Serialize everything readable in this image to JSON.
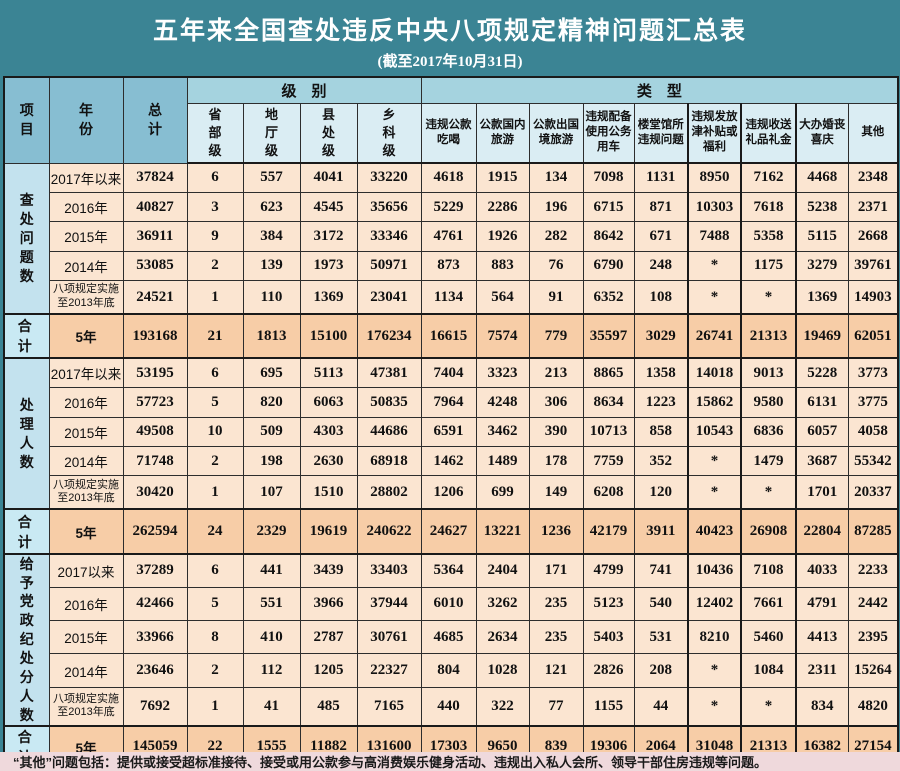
{
  "title": "五年来全国查处违反中央八项规定精神问题汇总表",
  "subtitle": "(截至2017年10月31日)",
  "colors": {
    "background_teal": "#3B8494",
    "header_blue": "#87BED2",
    "group_header_blue": "#A5D3DF",
    "subheader_blue": "#DAEDF3",
    "section_label_blue": "#C3E2EE",
    "total_label_blue": "#C9E9F3",
    "data_peach": "#FBE5D1",
    "total_peach": "#F7CDA7",
    "footnote_pink": "#EFD9DC"
  },
  "chart_data": {
    "type": "table",
    "title": "五年来全国查处违反中央八项规定精神问题汇总表",
    "subtitle": "(截至2017年10月31日)",
    "corner_headers": {
      "item": "项\n目",
      "year": "年\n份",
      "total": "总\n计"
    },
    "column_groups": [
      {
        "label": "级　别",
        "span": 4
      },
      {
        "label": "类　型",
        "span": 9
      }
    ],
    "columns": [
      "总计",
      "省部级",
      "地厅级",
      "县处级",
      "乡科级",
      "违规公款吃喝",
      "公款国内旅游",
      "公款出国境旅游",
      "违规配备使用公务用车",
      "楼堂馆所违规问题",
      "违规发放津补贴或福利",
      "违规收送礼品礼金",
      "大办婚丧喜庆",
      "其他"
    ],
    "level_columns": [
      "省\n部\n级",
      "地\n厅\n级",
      "县\n处\n级",
      "乡\n科\n级"
    ],
    "type_columns": [
      "违规公款\n吃喝",
      "公款国内\n旅游",
      "公款出国\n境旅游",
      "违规配备\n使用公务\n用车",
      "楼堂馆所\n违规问题",
      "违规发放\n津补贴或\n福利",
      "违规收送\n礼品礼金",
      "大办婚丧\n喜庆",
      "其他"
    ],
    "sections": [
      {
        "name": "查处问题数",
        "label": "查\n处\n问\n题\n数",
        "rows": [
          {
            "year": "2017年以来",
            "values": [
              "37824",
              "6",
              "557",
              "4041",
              "33220",
              "4618",
              "1915",
              "134",
              "7098",
              "1131",
              "8950",
              "7162",
              "4468",
              "2348"
            ]
          },
          {
            "year": "2016年",
            "values": [
              "40827",
              "3",
              "623",
              "4545",
              "35656",
              "5229",
              "2286",
              "196",
              "6715",
              "871",
              "10303",
              "7618",
              "5238",
              "2371"
            ]
          },
          {
            "year": "2015年",
            "values": [
              "36911",
              "9",
              "384",
              "3172",
              "33346",
              "4761",
              "1926",
              "282",
              "8642",
              "671",
              "7488",
              "5358",
              "5115",
              "2668"
            ]
          },
          {
            "year": "2014年",
            "values": [
              "53085",
              "2",
              "139",
              "1973",
              "50971",
              "873",
              "883",
              "76",
              "6790",
              "248",
              "*",
              "1175",
              "3279",
              "39761"
            ]
          },
          {
            "year": "八项规定实施\n至2013年底",
            "values": [
              "24521",
              "1",
              "110",
              "1369",
              "23041",
              "1134",
              "564",
              "91",
              "6352",
              "108",
              "*",
              "*",
              "1369",
              "14903"
            ]
          }
        ],
        "total_row": {
          "label": "合 计",
          "year": "5年",
          "values": [
            "193168",
            "21",
            "1813",
            "15100",
            "176234",
            "16615",
            "7574",
            "779",
            "35597",
            "3029",
            "26741",
            "21313",
            "19469",
            "62051"
          ]
        }
      },
      {
        "name": "处理人数",
        "label": "处\n理\n人\n数",
        "rows": [
          {
            "year": "2017年以来",
            "values": [
              "53195",
              "6",
              "695",
              "5113",
              "47381",
              "7404",
              "3323",
              "213",
              "8865",
              "1358",
              "14018",
              "9013",
              "5228",
              "3773"
            ]
          },
          {
            "year": "2016年",
            "values": [
              "57723",
              "5",
              "820",
              "6063",
              "50835",
              "7964",
              "4248",
              "306",
              "8634",
              "1223",
              "15862",
              "9580",
              "6131",
              "3775"
            ]
          },
          {
            "year": "2015年",
            "values": [
              "49508",
              "10",
              "509",
              "4303",
              "44686",
              "6591",
              "3462",
              "390",
              "10713",
              "858",
              "10543",
              "6836",
              "6057",
              "4058"
            ]
          },
          {
            "year": "2014年",
            "values": [
              "71748",
              "2",
              "198",
              "2630",
              "68918",
              "1462",
              "1489",
              "178",
              "7759",
              "352",
              "*",
              "1479",
              "3687",
              "55342"
            ]
          },
          {
            "year": "八项规定实施\n至2013年底",
            "values": [
              "30420",
              "1",
              "107",
              "1510",
              "28802",
              "1206",
              "699",
              "149",
              "6208",
              "120",
              "*",
              "*",
              "1701",
              "20337"
            ]
          }
        ],
        "total_row": {
          "label": "合 计",
          "year": "5年",
          "values": [
            "262594",
            "24",
            "2329",
            "19619",
            "240622",
            "24627",
            "13221",
            "1236",
            "42179",
            "3911",
            "40423",
            "26908",
            "22804",
            "87285"
          ]
        }
      },
      {
        "name": "给予党政纪处分人数",
        "label": "给\n予\n党\n政\n纪\n处\n分\n人\n数",
        "rows": [
          {
            "year": "2017以来",
            "values": [
              "37289",
              "6",
              "441",
              "3439",
              "33403",
              "5364",
              "2404",
              "171",
              "4799",
              "741",
              "10436",
              "7108",
              "4033",
              "2233"
            ]
          },
          {
            "year": "2016年",
            "values": [
              "42466",
              "5",
              "551",
              "3966",
              "37944",
              "6010",
              "3262",
              "235",
              "5123",
              "540",
              "12402",
              "7661",
              "4791",
              "2442"
            ]
          },
          {
            "year": "2015年",
            "values": [
              "33966",
              "8",
              "410",
              "2787",
              "30761",
              "4685",
              "2634",
              "235",
              "5403",
              "531",
              "8210",
              "5460",
              "4413",
              "2395"
            ]
          },
          {
            "year": "2014年",
            "values": [
              "23646",
              "2",
              "112",
              "1205",
              "22327",
              "804",
              "1028",
              "121",
              "2826",
              "208",
              "*",
              "1084",
              "2311",
              "15264"
            ]
          },
          {
            "year": "八项规定实施\n至2013年底",
            "values": [
              "7692",
              "1",
              "41",
              "485",
              "7165",
              "440",
              "322",
              "77",
              "1155",
              "44",
              "*",
              "*",
              "834",
              "4820"
            ]
          }
        ],
        "total_row": {
          "label": "合 计",
          "year": "5年",
          "values": [
            "145059",
            "22",
            "1555",
            "11882",
            "131600",
            "17303",
            "9650",
            "839",
            "19306",
            "2064",
            "31048",
            "21313",
            "16382",
            "27154"
          ]
        }
      }
    ],
    "footnote": "“其他”问题包括：提供或接受超标准接待、接受或用公款参与高消费娱乐健身活动、违规出入私人会所、领导干部住房违规等问题。"
  }
}
